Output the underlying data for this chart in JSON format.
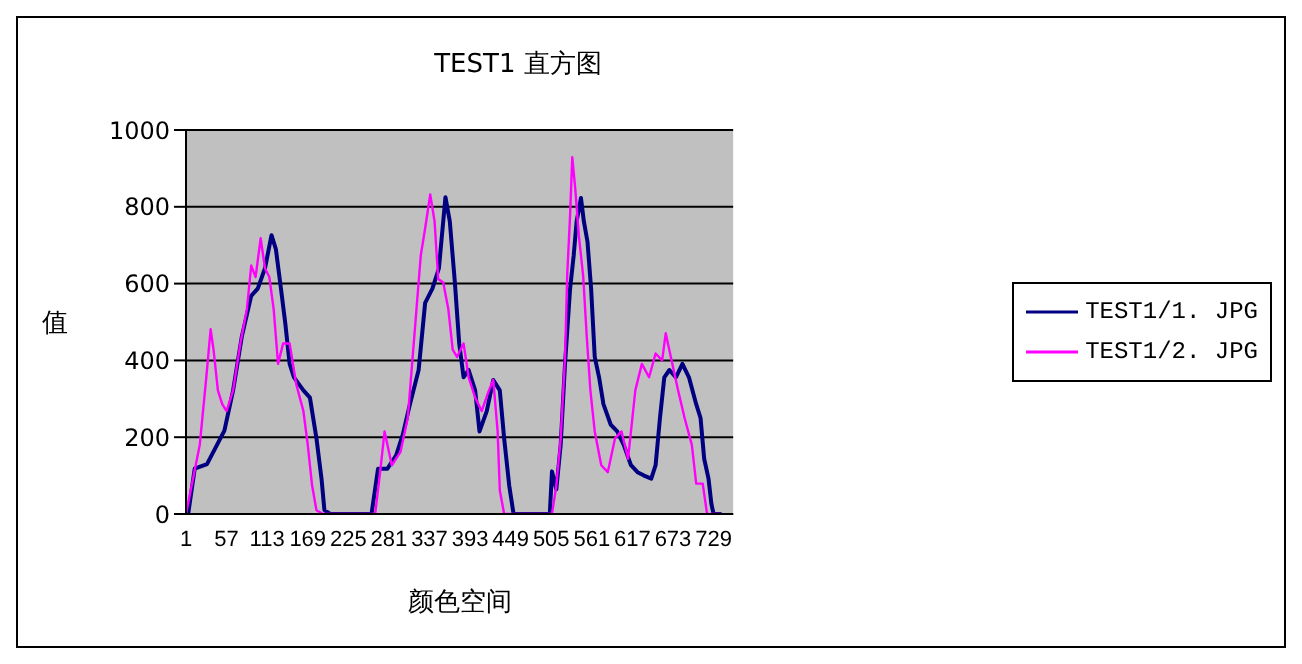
{
  "chart_data": {
    "type": "line",
    "title": "TEST1 直方图",
    "xlabel": "颜色空间",
    "ylabel": "值",
    "xlim": [
      1,
      756
    ],
    "xticks": [
      1,
      57,
      113,
      169,
      225,
      281,
      337,
      393,
      449,
      505,
      561,
      617,
      673,
      729
    ],
    "ylim": [
      0,
      1000
    ],
    "yticks": [
      0,
      200,
      400,
      600,
      800,
      1000
    ],
    "grid": "y",
    "legend": "right",
    "marker": "none",
    "line_style": "solid",
    "series": [
      {
        "name": "TEST1/1. JPG",
        "color": "#000080",
        "x": [
          1,
          4,
          13,
          30,
          54,
          66,
          78,
          91,
          100,
          110,
          119,
          125,
          132,
          138,
          144,
          150,
          163,
          172,
          181,
          188,
          192,
          200,
          257,
          266,
          279,
          291,
          300,
          310,
          322,
          331,
          341,
          350,
          359,
          365,
          372,
          378,
          384,
          391,
          400,
          406,
          416,
          425,
          434,
          440,
          447,
          453,
          503,
          506,
          512,
          518,
          524,
          531,
          536,
          540,
          546,
          550,
          555,
          560,
          565,
          571,
          577,
          587,
          596,
          605,
          615,
          624,
          633,
          643,
          649,
          655,
          661,
          668,
          677,
          686,
          695,
          705,
          711,
          716,
          722,
          726,
          729,
          740
        ],
        "values": [
          0,
          0,
          118,
          130,
          217,
          322,
          462,
          568,
          587,
          640,
          726,
          690,
          587,
          497,
          391,
          356,
          322,
          303,
          197,
          92,
          10,
          0,
          0,
          118,
          118,
          153,
          206,
          286,
          375,
          550,
          587,
          640,
          825,
          762,
          603,
          444,
          356,
          375,
          322,
          215,
          268,
          349,
          322,
          197,
          74,
          0,
          0,
          111,
          64,
          180,
          391,
          587,
          674,
          762,
          823,
          762,
          709,
          587,
          409,
          356,
          286,
          233,
          215,
          180,
          127,
          109,
          100,
          92,
          127,
          250,
          356,
          375,
          356,
          391,
          356,
          286,
          250,
          144,
          92,
          26,
          0,
          0
        ]
      },
      {
        "name": "TEST1/2. JPG",
        "color": "#ff00ff",
        "x": [
          1,
          20,
          29,
          35,
          39,
          45,
          51,
          57,
          66,
          76,
          85,
          91,
          97,
          104,
          110,
          116,
          122,
          128,
          135,
          144,
          153,
          163,
          169,
          175,
          181,
          190,
          262,
          269,
          275,
          285,
          297,
          307,
          313,
          319,
          325,
          331,
          338,
          344,
          349,
          356,
          363,
          369,
          375,
          384,
          391,
          400,
          409,
          419,
          425,
          431,
          434,
          440,
          506,
          512,
          518,
          524,
          527,
          531,
          534,
          538,
          543,
          549,
          554,
          559,
          565,
          574,
          583,
          593,
          602,
          611,
          621,
          630,
          640,
          649,
          658,
          663,
          670,
          680,
          689,
          699,
          705,
          714,
          720,
          740
        ],
        "values": [
          0,
          180,
          356,
          481,
          428,
          322,
          286,
          268,
          322,
          444,
          533,
          647,
          617,
          718,
          640,
          617,
          533,
          391,
          444,
          444,
          339,
          268,
          180,
          74,
          10,
          0,
          0,
          111,
          215,
          127,
          162,
          250,
          391,
          533,
          674,
          744,
          832,
          762,
          612,
          603,
          533,
          428,
          409,
          444,
          356,
          303,
          268,
          322,
          349,
          215,
          62,
          0,
          0,
          74,
          197,
          409,
          621,
          779,
          929,
          850,
          726,
          621,
          462,
          322,
          215,
          127,
          109,
          197,
          215,
          144,
          322,
          391,
          356,
          418,
          400,
          471,
          409,
          322,
          250,
          180,
          79,
          79,
          0,
          0
        ]
      }
    ]
  }
}
